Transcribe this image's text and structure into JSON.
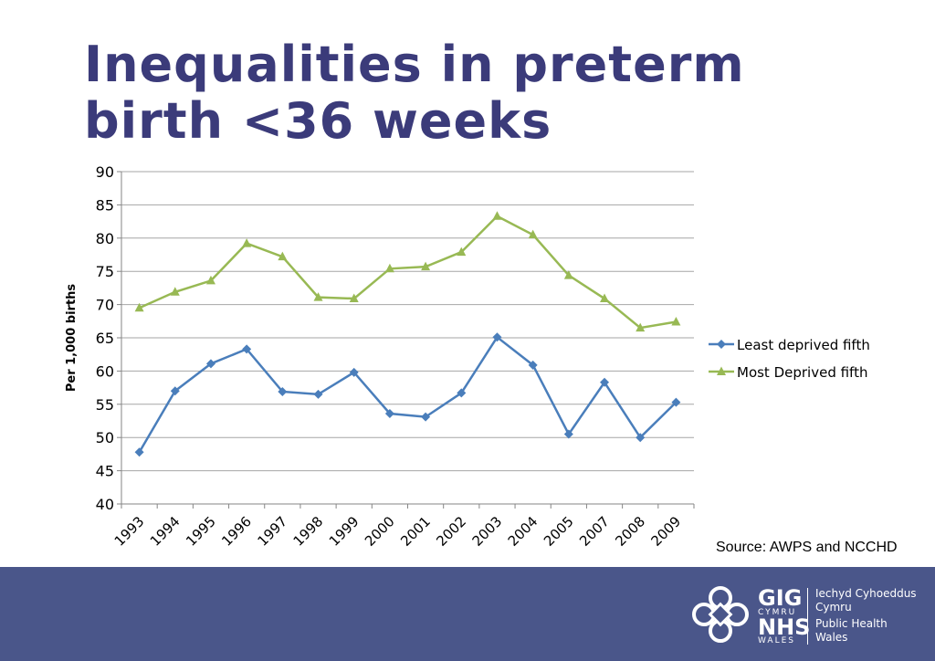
{
  "slide": {
    "title_line1": "Inequalities in preterm",
    "title_line2": "birth <36 weeks",
    "source": "Source: AWPS and NCCHD"
  },
  "footer": {
    "logo_gig": "GIG",
    "logo_cymru": "CYMRU",
    "logo_nhs": "NHS",
    "logo_wales": "WALES",
    "org_welsh_line1": "Iechyd Cyhoeddus",
    "org_welsh_line2": "Cymru",
    "org_english_line1": "Public Health",
    "org_english_line2": "Wales",
    "background_color": "#4a568a"
  },
  "chart_data": {
    "type": "line",
    "title": "",
    "xlabel": "",
    "ylabel": "Per  1,000 births",
    "ylim": [
      40,
      90
    ],
    "yticks": [
      40,
      45,
      50,
      55,
      60,
      65,
      70,
      75,
      80,
      85,
      90
    ],
    "grid": true,
    "legend_position": "right",
    "categories": [
      "1993",
      "1994",
      "1995",
      "1996",
      "1997",
      "1998",
      "1999",
      "2000",
      "2001",
      "2002",
      "2003",
      "2004",
      "2005",
      "2007",
      "2008",
      "2009"
    ],
    "series": [
      {
        "name": "Least deprived fifth",
        "color": "#4a7ebb",
        "marker": "diamond",
        "values": [
          47.8,
          57.0,
          61.1,
          63.3,
          56.9,
          56.5,
          59.8,
          53.6,
          53.1,
          56.7,
          65.1,
          60.9,
          50.5,
          58.3,
          50.0,
          55.3
        ]
      },
      {
        "name": "Most Deprived fifth",
        "color": "#98b954",
        "marker": "triangle",
        "values": [
          69.5,
          71.9,
          73.6,
          79.2,
          77.2,
          71.1,
          70.9,
          75.4,
          75.7,
          77.9,
          83.3,
          80.5,
          74.4,
          70.9,
          66.5,
          67.4
        ]
      }
    ]
  }
}
